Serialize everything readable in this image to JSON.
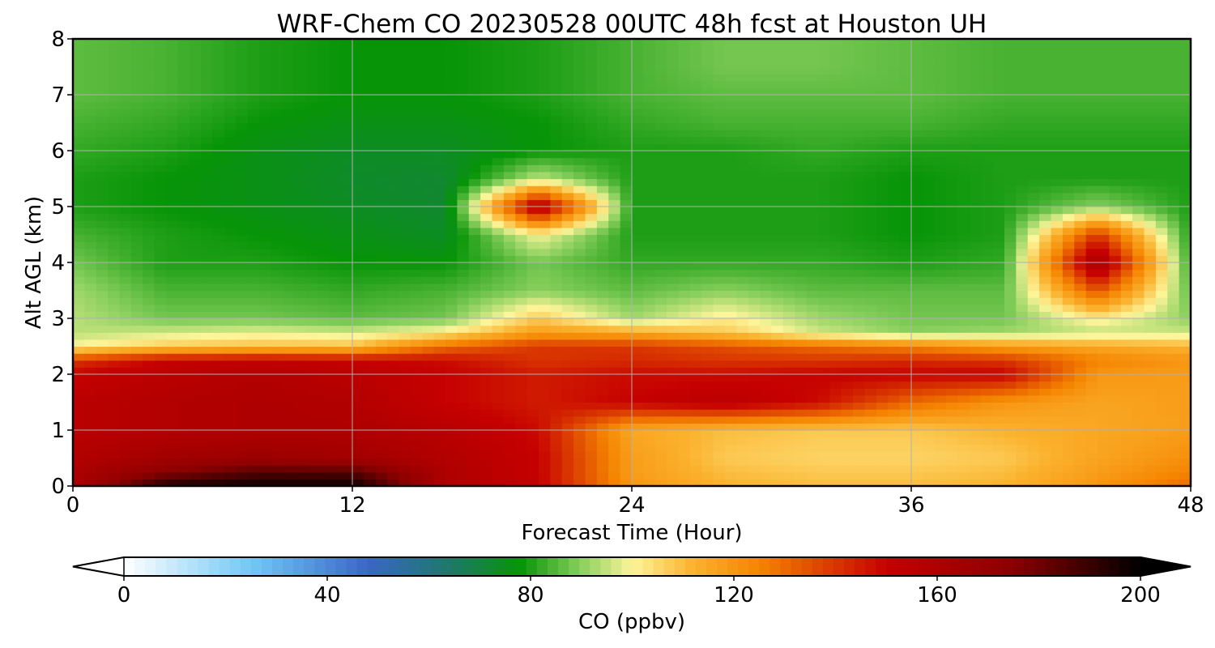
{
  "chart_data": {
    "type": "heatmap",
    "title": "WRF-Chem CO  20230528 00UTC 48h fcst at Houston UH",
    "xlabel": "Forecast Time (Hour)",
    "ylabel": "Alt AGL (km)",
    "xlim": [
      0,
      48
    ],
    "ylim": [
      0,
      8
    ],
    "xticks": [
      "0",
      "12",
      "24",
      "36",
      "48"
    ],
    "yticks": [
      "0",
      "1",
      "2",
      "3",
      "4",
      "5",
      "6",
      "7",
      "8"
    ],
    "grid": true,
    "x": [
      0,
      4,
      8,
      12,
      16,
      20,
      24,
      28,
      32,
      36,
      40,
      44,
      48
    ],
    "y": [
      0,
      0.25,
      0.5,
      1,
      1.5,
      2,
      2.25,
      2.5,
      2.75,
      3,
      3.5,
      4,
      4.5,
      5,
      5.5,
      6,
      6.5,
      7,
      7.5,
      8
    ],
    "z": [
      [
        160,
        195,
        198,
        198,
        160,
        150,
        120,
        112,
        110,
        110,
        112,
        120,
        130
      ],
      [
        160,
        175,
        185,
        185,
        160,
        150,
        118,
        110,
        108,
        108,
        110,
        118,
        125
      ],
      [
        158,
        165,
        168,
        165,
        158,
        150,
        118,
        108,
        106,
        106,
        108,
        116,
        122
      ],
      [
        155,
        158,
        160,
        160,
        156,
        148,
        115,
        110,
        108,
        108,
        112,
        115,
        118
      ],
      [
        155,
        158,
        160,
        158,
        150,
        145,
        150,
        155,
        148,
        130,
        120,
        116,
        118
      ],
      [
        150,
        155,
        158,
        155,
        150,
        145,
        148,
        148,
        150,
        150,
        150,
        120,
        118
      ],
      [
        140,
        150,
        152,
        150,
        148,
        140,
        142,
        140,
        140,
        142,
        140,
        125,
        120
      ],
      [
        100,
        108,
        110,
        110,
        130,
        140,
        140,
        135,
        130,
        125,
        118,
        115,
        112
      ],
      [
        94,
        96,
        98,
        96,
        102,
        118,
        115,
        108,
        96,
        90,
        92,
        95,
        96
      ],
      [
        94,
        88,
        88,
        86,
        88,
        108,
        92,
        102,
        92,
        88,
        88,
        102,
        90
      ],
      [
        92,
        84,
        84,
        82,
        84,
        90,
        86,
        90,
        86,
        86,
        86,
        135,
        86
      ],
      [
        88,
        80,
        80,
        78,
        78,
        88,
        82,
        82,
        82,
        80,
        82,
        165,
        82
      ],
      [
        84,
        80,
        78,
        76,
        74,
        100,
        80,
        80,
        80,
        78,
        80,
        140,
        80
      ],
      [
        80,
        78,
        76,
        74,
        72,
        160,
        80,
        80,
        80,
        78,
        80,
        90,
        80
      ],
      [
        80,
        78,
        76,
        73,
        72,
        95,
        80,
        80,
        80,
        78,
        80,
        80,
        80
      ],
      [
        82,
        80,
        76,
        74,
        74,
        78,
        80,
        80,
        82,
        80,
        80,
        80,
        80
      ],
      [
        84,
        82,
        78,
        76,
        76,
        78,
        82,
        84,
        84,
        84,
        82,
        82,
        82
      ],
      [
        86,
        84,
        80,
        78,
        78,
        80,
        84,
        86,
        86,
        86,
        84,
        84,
        84
      ],
      [
        86,
        84,
        80,
        78,
        78,
        80,
        84,
        88,
        88,
        86,
        84,
        84,
        84
      ],
      [
        86,
        84,
        80,
        78,
        78,
        80,
        84,
        88,
        88,
        86,
        84,
        84,
        84
      ]
    ],
    "colorbar": {
      "label": "CO  (ppbv)",
      "min": 0,
      "max": 200,
      "ticks": [
        "0",
        "40",
        "80",
        "120",
        "160",
        "200"
      ],
      "extend": "both",
      "colors": [
        {
          "v": 0,
          "c": "#ffffff"
        },
        {
          "v": 25,
          "c": "#72c8f5"
        },
        {
          "v": 48,
          "c": "#3a66c6"
        },
        {
          "v": 65,
          "c": "#1c7a62"
        },
        {
          "v": 78,
          "c": "#079407"
        },
        {
          "v": 90,
          "c": "#8ad05e"
        },
        {
          "v": 100,
          "c": "#fdf59a"
        },
        {
          "v": 112,
          "c": "#fbb22e"
        },
        {
          "v": 125,
          "c": "#f58400"
        },
        {
          "v": 150,
          "c": "#c60000"
        },
        {
          "v": 175,
          "c": "#8a0000"
        },
        {
          "v": 200,
          "c": "#000000"
        }
      ]
    }
  }
}
